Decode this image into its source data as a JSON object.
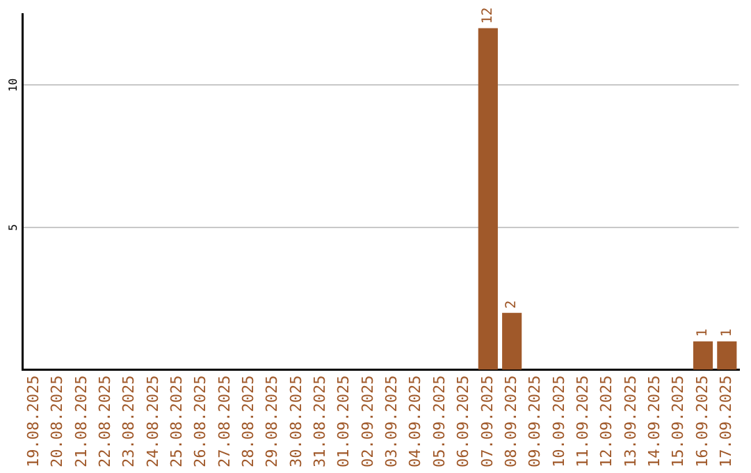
{
  "chart_data": {
    "type": "bar",
    "categories": [
      "19.08.2025",
      "20.08.2025",
      "21.08.2025",
      "22.08.2025",
      "23.08.2025",
      "24.08.2025",
      "25.08.2025",
      "26.08.2025",
      "27.08.2025",
      "28.08.2025",
      "29.08.2025",
      "30.08.2025",
      "31.08.2025",
      "01.09.2025",
      "02.09.2025",
      "03.09.2025",
      "04.09.2025",
      "05.09.2025",
      "06.09.2025",
      "07.09.2025",
      "08.09.2025",
      "09.09.2025",
      "10.09.2025",
      "11.09.2025",
      "12.09.2025",
      "13.09.2025",
      "14.09.2025",
      "15.09.2025",
      "16.09.2025",
      "17.09.2025"
    ],
    "values": [
      0,
      0,
      0,
      0,
      0,
      0,
      0,
      0,
      0,
      0,
      0,
      0,
      0,
      0,
      0,
      0,
      0,
      0,
      0,
      12,
      2,
      0,
      0,
      0,
      0,
      0,
      0,
      0,
      1,
      1
    ],
    "value_labels": [
      null,
      null,
      null,
      null,
      null,
      null,
      null,
      null,
      null,
      null,
      null,
      null,
      null,
      null,
      null,
      null,
      null,
      null,
      null,
      "12",
      "2",
      null,
      null,
      null,
      null,
      null,
      null,
      null,
      "1",
      "1"
    ],
    "color": "#a0592a",
    "ylim": [
      0,
      12.5
    ],
    "yticks": [
      5,
      10
    ],
    "grid": "y",
    "legend": false
  }
}
